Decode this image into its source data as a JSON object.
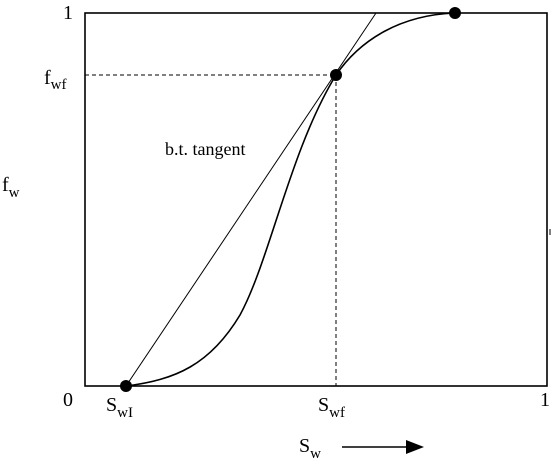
{
  "diagram": {
    "y_axis": {
      "label_main": "f",
      "label_sub": "w"
    },
    "x_axis": {
      "label_main": "S",
      "label_sub": "w"
    },
    "ticks": {
      "y_top": "1",
      "y_bottom": "0",
      "x_right": "1",
      "fwf_main": "f",
      "fwf_sub": "wf",
      "swi_main": "S",
      "swi_sub": "wI",
      "swf_main": "S",
      "swf_sub": "wf"
    },
    "annotation": "b.t. tangent"
  },
  "colors": {
    "ink": "#000000",
    "background": "#ffffff"
  }
}
